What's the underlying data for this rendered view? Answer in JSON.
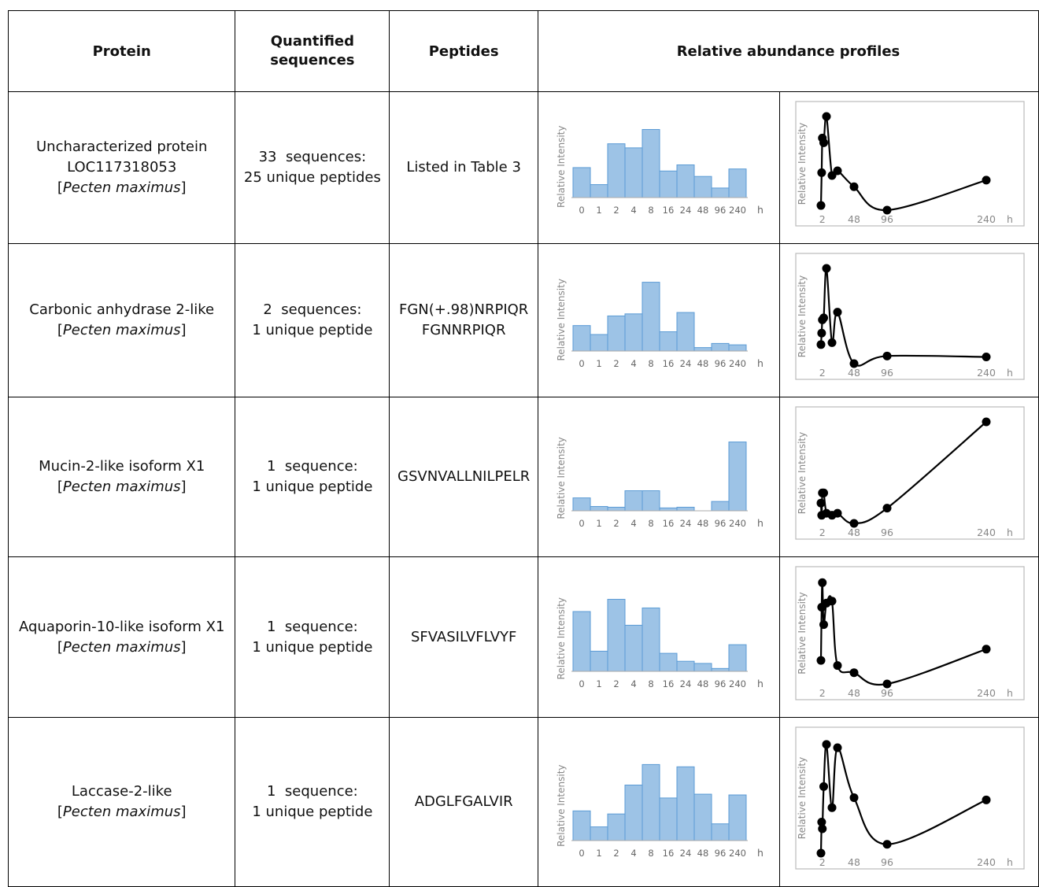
{
  "headers": {
    "protein": "Protein",
    "quantified": "Quantified sequences",
    "peptides": "Peptides",
    "profiles": "Relative abundance profiles"
  },
  "rows": [
    {
      "protein_line1": "Uncharacterized protein",
      "protein_line2": "LOC117318053",
      "species": "Pecten maximus",
      "seq_line1": "33  sequences:",
      "seq_line2": "25 unique peptides",
      "peptide_line1": "Listed in Table 3",
      "peptide_line2": ""
    },
    {
      "protein_line1": "Carbonic anhydrase 2-like",
      "protein_line2": "",
      "species": "Pecten maximus",
      "seq_line1": "2  sequences:",
      "seq_line2": "1 unique peptide",
      "peptide_line1": "FGN(+.98)NRPIQR",
      "peptide_line2": "FGNNRPIQR"
    },
    {
      "protein_line1": "Mucin-2-like isoform X1",
      "protein_line2": "",
      "species": "Pecten maximus",
      "seq_line1": "1  sequence:",
      "seq_line2": "1 unique peptide",
      "peptide_line1": "GSVNVALLNILPELR",
      "peptide_line2": ""
    },
    {
      "protein_line1": "Aquaporin-10-like isoform X1",
      "protein_line2": "",
      "species": "Pecten maximus",
      "seq_line1": "1  sequence:",
      "seq_line2": "1 unique peptide",
      "peptide_line1": "SFVASILVFLVYF",
      "peptide_line2": ""
    },
    {
      "protein_line1": "Laccase-2-like",
      "protein_line2": "",
      "species": "Pecten maximus",
      "seq_line1": "1  sequence:",
      "seq_line2": "1 unique peptide",
      "peptide_line1": "ADGLFGALVIR",
      "peptide_line2": ""
    }
  ],
  "chart_common": {
    "ylabel": "Relative Intensity",
    "xunit": "h",
    "bar_categories": [
      "0",
      "1",
      "2",
      "4",
      "8",
      "16",
      "24",
      "48",
      "96",
      "240"
    ],
    "line_x": [
      0,
      1,
      2,
      4,
      8,
      16,
      24,
      48,
      96,
      240
    ],
    "line_tick_labels": [
      "2",
      "48",
      "96",
      "240"
    ],
    "line_tick_values": [
      2,
      48,
      96,
      240
    ],
    "bar_color": "#9dc3e6",
    "bar_edge": "#5b9bd5",
    "line_color": "#000000"
  },
  "chart_data": [
    {
      "type": "bar",
      "row": 0,
      "xlabel": "h",
      "ylabel": "Relative Intensity",
      "categories": [
        "0",
        "1",
        "2",
        "4",
        "8",
        "16",
        "24",
        "48",
        "96",
        "240"
      ],
      "values": [
        0.44,
        0.19,
        0.79,
        0.73,
        1.0,
        0.39,
        0.48,
        0.31,
        0.14,
        0.42
      ]
    },
    {
      "type": "line",
      "row": 0,
      "xlabel": "h",
      "ylabel": "Relative Intensity",
      "x": [
        0,
        1,
        2,
        4,
        8,
        16,
        24,
        48,
        96,
        240
      ],
      "values": [
        0.05,
        0.4,
        0.77,
        0.72,
        1.0,
        0.37,
        0.42,
        0.25,
        0.0,
        0.32
      ]
    },
    {
      "type": "bar",
      "row": 1,
      "xlabel": "h",
      "ylabel": "Relative Intensity",
      "categories": [
        "0",
        "1",
        "2",
        "4",
        "8",
        "16",
        "24",
        "48",
        "96",
        "240"
      ],
      "values": [
        0.37,
        0.24,
        0.51,
        0.54,
        1.0,
        0.28,
        0.56,
        0.05,
        0.11,
        0.09
      ]
    },
    {
      "type": "line",
      "row": 1,
      "xlabel": "h",
      "ylabel": "Relative Intensity",
      "x": [
        0,
        1,
        2,
        4,
        8,
        16,
        24,
        48,
        96,
        240
      ],
      "values": [
        0.2,
        0.32,
        0.46,
        0.48,
        1.0,
        0.22,
        0.54,
        0.0,
        0.08,
        0.07
      ]
    },
    {
      "type": "bar",
      "row": 2,
      "xlabel": "h",
      "ylabel": "Relative Intensity",
      "categories": [
        "0",
        "1",
        "2",
        "4",
        "8",
        "16",
        "24",
        "48",
        "96",
        "240"
      ],
      "values": [
        0.18,
        0.06,
        0.05,
        0.28,
        0.28,
        0.04,
        0.05,
        0.0,
        0.13,
        0.96
      ]
    },
    {
      "type": "line",
      "row": 2,
      "xlabel": "h",
      "ylabel": "Relative Intensity",
      "x": [
        0,
        1,
        2,
        4,
        8,
        16,
        24,
        48,
        96,
        240
      ],
      "values": [
        0.2,
        0.08,
        0.3,
        0.3,
        0.1,
        0.08,
        0.1,
        0.0,
        0.15,
        1.0
      ]
    },
    {
      "type": "bar",
      "row": 3,
      "xlabel": "h",
      "ylabel": "Relative Intensity",
      "categories": [
        "0",
        "1",
        "2",
        "4",
        "8",
        "16",
        "24",
        "48",
        "96",
        "240"
      ],
      "values": [
        0.83,
        0.28,
        1.0,
        0.64,
        0.88,
        0.25,
        0.14,
        0.11,
        0.04,
        0.37
      ]
    },
    {
      "type": "line",
      "row": 3,
      "xlabel": "h",
      "ylabel": "Relative Intensity",
      "x": [
        0,
        1,
        2,
        4,
        8,
        16,
        24,
        48,
        96,
        240
      ],
      "values": [
        0.23,
        0.75,
        0.99,
        0.58,
        0.79,
        0.81,
        0.18,
        0.11,
        0.0,
        0.34
      ]
    },
    {
      "type": "bar",
      "row": 4,
      "xlabel": "h",
      "ylabel": "Relative Intensity",
      "categories": [
        "0",
        "1",
        "2",
        "4",
        "8",
        "16",
        "24",
        "48",
        "96",
        "240"
      ],
      "values": [
        0.39,
        0.18,
        0.35,
        0.73,
        1.0,
        0.56,
        0.97,
        0.61,
        0.22,
        0.6
      ]
    },
    {
      "type": "line",
      "row": 4,
      "xlabel": "h",
      "ylabel": "Relative Intensity",
      "x": [
        0,
        1,
        2,
        4,
        8,
        16,
        24,
        48,
        96,
        240
      ],
      "values": [
        0.0,
        0.28,
        0.22,
        0.6,
        0.98,
        0.41,
        0.95,
        0.5,
        0.08,
        0.48
      ]
    }
  ]
}
